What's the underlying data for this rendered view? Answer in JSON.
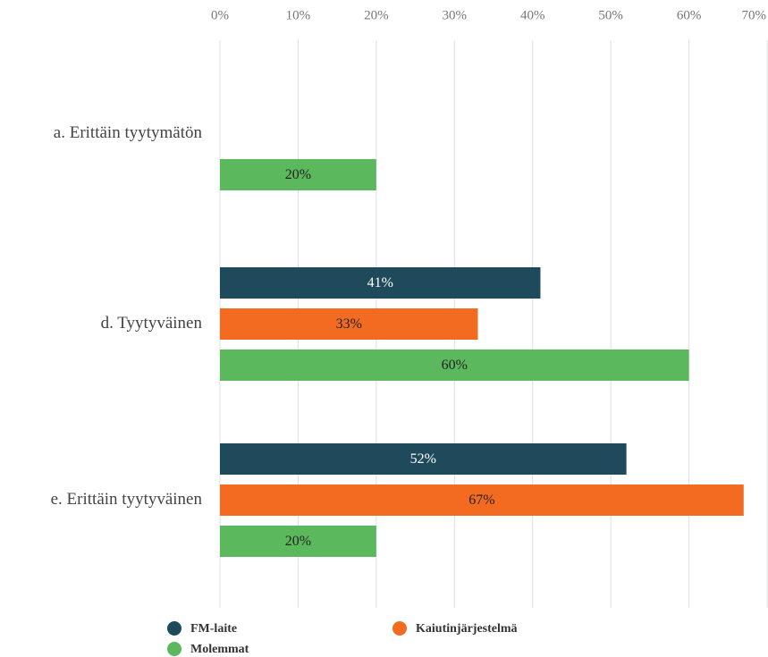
{
  "chart_data": {
    "type": "hbar",
    "categories": [
      "a. Erittäin tyytymätön",
      "d. Tyytyväinen",
      "e. Erittäin tyytyväinen"
    ],
    "series": [
      {
        "name": "FM-laite",
        "color": "#1f4a5c",
        "values": [
          null,
          41,
          52
        ],
        "value_labels": [
          null,
          "41%",
          "52%"
        ]
      },
      {
        "name": "Kaiutinjärjestelmä",
        "color": "#f26b21",
        "values": [
          null,
          33,
          67
        ],
        "value_labels": [
          null,
          "33%",
          "67%"
        ]
      },
      {
        "name": "Molemmat",
        "color": "#5cb85c",
        "values": [
          20,
          60,
          20
        ],
        "value_labels": [
          "20%",
          "60%",
          "20%"
        ]
      }
    ],
    "xlim": [
      0,
      70
    ],
    "xticks": [
      {
        "value": 0,
        "label": "0%"
      },
      {
        "value": 10,
        "label": "10%"
      },
      {
        "value": 20,
        "label": "20%"
      },
      {
        "value": 30,
        "label": "30%"
      },
      {
        "value": 40,
        "label": "40%"
      },
      {
        "value": 50,
        "label": "50%"
      },
      {
        "value": 60,
        "label": "60%"
      },
      {
        "value": 70,
        "label": "70%"
      }
    ],
    "grid": true,
    "legend": "bottom"
  }
}
